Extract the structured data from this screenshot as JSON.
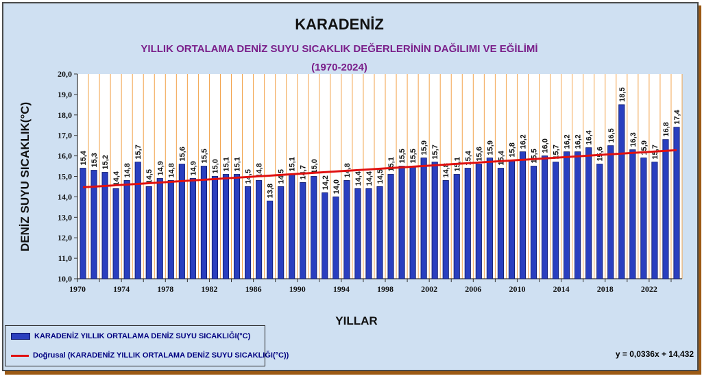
{
  "chart_data": {
    "type": "bar",
    "title": "KARADENİZ",
    "subtitle": "YILLIK ORTALAMA DENİZ SUYU SICAKLIK DEĞERLERİNİN  DAĞILIMI VE EĞİLİMİ",
    "period": "(1970-2024)",
    "ylabel": "DENİZ SUYU  SICAKLIK(°C)",
    "xlabel": "YILLAR",
    "ylim": [
      10.0,
      20.0
    ],
    "ytick_labels": [
      "10,0",
      "11,0",
      "12,0",
      "13,0",
      "14,0",
      "15,0",
      "16,0",
      "17,0",
      "18,0",
      "19,0",
      "20,0"
    ],
    "xtick_labels": [
      "1970",
      "1974",
      "1978",
      "1982",
      "1986",
      "1990",
      "1994",
      "1998",
      "2002",
      "2006",
      "2010",
      "2014",
      "2018",
      "2022"
    ],
    "x": [
      1970,
      1971,
      1972,
      1973,
      1974,
      1975,
      1976,
      1977,
      1978,
      1979,
      1980,
      1981,
      1982,
      1983,
      1984,
      1985,
      1986,
      1987,
      1988,
      1989,
      1990,
      1991,
      1992,
      1993,
      1994,
      1995,
      1996,
      1997,
      1998,
      1999,
      2000,
      2001,
      2002,
      2003,
      2004,
      2005,
      2006,
      2007,
      2008,
      2009,
      2010,
      2011,
      2012,
      2013,
      2014,
      2015,
      2016,
      2017,
      2018,
      2019,
      2020,
      2021,
      2022,
      2023,
      2024
    ],
    "series": [
      {
        "name": "KARADENİZ YILLIK ORTALAMA DENİZ SUYU SICAKLIĞI(°C)",
        "values": [
          15.4,
          15.3,
          15.2,
          14.4,
          14.8,
          15.7,
          14.5,
          14.9,
          14.8,
          15.6,
          14.9,
          15.5,
          15.0,
          15.1,
          15.1,
          14.5,
          14.8,
          13.8,
          14.5,
          15.1,
          14.7,
          15.0,
          14.2,
          14.0,
          14.8,
          14.4,
          14.4,
          14.5,
          15.1,
          15.5,
          15.5,
          15.9,
          15.7,
          14.8,
          15.1,
          15.4,
          15.6,
          15.9,
          15.4,
          15.8,
          16.2,
          15.5,
          16.0,
          15.7,
          16.2,
          16.2,
          16.4,
          15.6,
          16.5,
          18.5,
          16.3,
          15.9,
          15.7,
          16.8,
          17.4
        ],
        "labels": [
          "15,4",
          "15,3",
          "15,2",
          "14,4",
          "14,8",
          "15,7",
          "14,5",
          "14,9",
          "14,8",
          "15,6",
          "14,9",
          "15,5",
          "15,0",
          "15,1",
          "15,1",
          "14,5",
          "14,8",
          "13,8",
          "14,5",
          "15,1",
          "14,7",
          "15,0",
          "14,2",
          "14,0",
          "14,8",
          "14,4",
          "14,4",
          "14,5",
          "15,1",
          "15,5",
          "15,5",
          "15,9",
          "15,7",
          "14,8",
          "15,1",
          "15,4",
          "15,6",
          "15,9",
          "15,4",
          "15,8",
          "16,2",
          "15,5",
          "16,0",
          "15,7",
          "16,2",
          "16,2",
          "16,4",
          "15,6",
          "16,5",
          "18,5",
          "16,3",
          "15,9",
          "15,7",
          "16,8",
          "17,4"
        ]
      }
    ],
    "trendline": {
      "name": "Doğrusal (KARADENİZ YILLIK ORTALAMA DENİZ SUYU SICAKLIĞI(°C))",
      "slope": 0.0336,
      "intercept": 14.432,
      "equation": "y = 0,0336x + 14,432"
    },
    "grid": "vertical",
    "legend_position": "bottom-left",
    "colors": {
      "bar": "#2a3fbf",
      "bar_edge": "#0b1466",
      "trend": "#e01010",
      "grid": "#f2a24a",
      "plot_bg": "#ffffff",
      "frame_bg": "#cfe0f2"
    }
  }
}
